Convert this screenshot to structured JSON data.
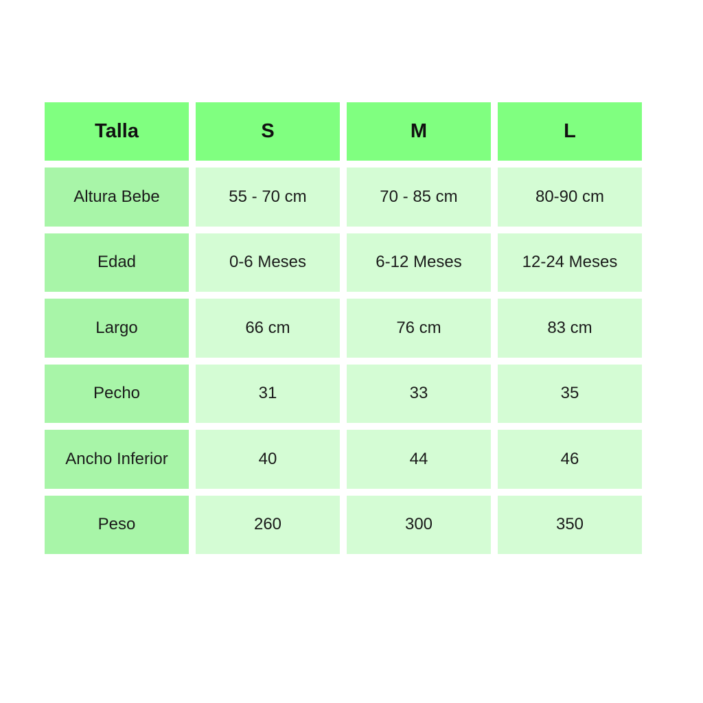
{
  "table": {
    "headers": [
      "Talla",
      "S",
      "M",
      "L"
    ],
    "rows": [
      [
        "Altura Bebe",
        "55 - 70 cm",
        "70 - 85 cm",
        "80-90 cm"
      ],
      [
        "Edad",
        "0-6 Meses",
        "6-12 Meses",
        "12-24 Meses"
      ],
      [
        "Largo",
        "66 cm",
        "76 cm",
        "83 cm"
      ],
      [
        "Pecho",
        "31",
        "33",
        "35"
      ],
      [
        "Ancho Inferior",
        "40",
        "44",
        "46"
      ],
      [
        "Peso",
        "260",
        "300",
        "350"
      ]
    ]
  },
  "colors": {
    "header": "#80ff80",
    "label_column": "#a8f5a8",
    "value_cells": "#d4fcd4"
  }
}
